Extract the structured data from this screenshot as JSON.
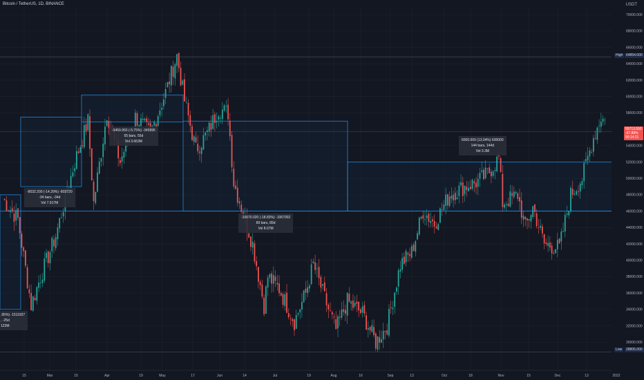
{
  "header": {
    "title": "Bitcoin / TetherUS, 1D, BINANCE",
    "currency": "USDT"
  },
  "colors": {
    "background": "#131722",
    "up": "#26a69a",
    "down": "#ef5350",
    "box": "#2196f3",
    "grid": "#1e222d"
  },
  "price_tags": {
    "high_label": "High",
    "high_value": "64854.000",
    "low_label": "Low",
    "low_value": "28805.000",
    "last_lines": [
      "55713.550",
      "-57.89%",
      "90:14:21"
    ]
  },
  "annotations": [
    {
      "lines": [
        ".95%) -1511927",
        ", -25d",
        "123M"
      ]
    },
    {
      "lines": [
        "-8032.200 (-14.29%) -803720",
        "-34 bars, -34d",
        "Vol 7.917M"
      ]
    },
    {
      "lines": [
        "-3459.950 (-5.75%) -345995",
        "55 bars, 55d",
        "Vol 3.663M"
      ]
    },
    {
      "lines": [
        "-10670.020 (-18.83%) -1067002",
        "89 bars, 89d",
        "Vol 8.07M"
      ]
    },
    {
      "lines": [
        "6000.000 (13.04%) 600000",
        "144 bars, 144d",
        "Vol 3.3M"
      ]
    }
  ],
  "chart_data": {
    "type": "candlestick",
    "title": "Bitcoin / TetherUS, 1D, BINANCE",
    "ylabel": "USDT",
    "ylim": [
      28000,
      71500
    ],
    "grid": true,
    "y_ticks": [
      "70000.000",
      "68000.000",
      "66000.000",
      "64000.000",
      "62000.000",
      "60000.000",
      "58000.000",
      "56000.000",
      "54000.000",
      "52000.000",
      "50000.000",
      "48000.000",
      "46000.000",
      "44000.000",
      "42000.000",
      "40000.000",
      "38000.000",
      "36000.000",
      "34000.000",
      "32000.000",
      "30000.000"
    ],
    "x_ticks": [
      "15",
      "Mar",
      "15",
      "Apr",
      "19",
      "May",
      "17",
      "Jun",
      "14",
      "Jul",
      "19",
      "Aug",
      "16",
      "Sep",
      "13",
      "Oct",
      "18",
      "Nov",
      "15",
      "Dec",
      "13",
      "2022"
    ],
    "keypoints": [
      [
        0,
        47500
      ],
      [
        8,
        45000
      ],
      [
        15,
        34500
      ],
      [
        20,
        38000
      ],
      [
        28,
        43000
      ],
      [
        38,
        52000
      ],
      [
        45,
        57000
      ],
      [
        48,
        47000
      ],
      [
        55,
        58000
      ],
      [
        62,
        52000
      ],
      [
        70,
        57500
      ],
      [
        78,
        55500
      ],
      [
        86,
        60500
      ],
      [
        92,
        65000
      ],
      [
        96,
        59500
      ],
      [
        102,
        53500
      ],
      [
        108,
        55500
      ],
      [
        114,
        58500
      ],
      [
        119,
        58000
      ],
      [
        122,
        49500
      ],
      [
        126,
        46500
      ],
      [
        132,
        42000
      ],
      [
        138,
        34500
      ],
      [
        140,
        38000
      ],
      [
        146,
        36500
      ],
      [
        154,
        32500
      ],
      [
        160,
        36000
      ],
      [
        164,
        39500
      ],
      [
        172,
        34000
      ],
      [
        176,
        31500
      ],
      [
        182,
        35000
      ],
      [
        190,
        33500
      ],
      [
        197,
        30000
      ],
      [
        203,
        32000
      ],
      [
        210,
        39500
      ],
      [
        216,
        41000
      ],
      [
        222,
        46000
      ],
      [
        228,
        44500
      ],
      [
        236,
        48000
      ],
      [
        244,
        49000
      ],
      [
        250,
        49500
      ],
      [
        256,
        50500
      ],
      [
        262,
        52500
      ],
      [
        264,
        47000
      ],
      [
        272,
        48000
      ],
      [
        276,
        44000
      ],
      [
        280,
        46500
      ],
      [
        286,
        42000
      ],
      [
        294,
        41500
      ],
      [
        300,
        48000
      ],
      [
        306,
        50000
      ],
      [
        312,
        55000
      ],
      [
        316,
        57500
      ],
      [
        320,
        56500
      ],
      [
        322,
        55713
      ]
    ],
    "measurements": [
      {
        "price_from": 48000,
        "price_to": 34000,
        "change": "-14.29%",
        "bars": -34
      },
      {
        "price_from": 57500,
        "price_to": 49000,
        "change": "-14.29%",
        "bars": -34
      },
      {
        "price_from": 60200,
        "price_to": 56900,
        "change": "-5.75%",
        "bars": 55
      },
      {
        "price_from": 57000,
        "price_to": 46000,
        "change": "-18.83%",
        "bars": 89
      },
      {
        "price_from": 52000,
        "price_to": 46000,
        "change": "13.04%",
        "bars": 144
      }
    ],
    "high": 64854,
    "low": 28805,
    "last": 55713.55
  }
}
